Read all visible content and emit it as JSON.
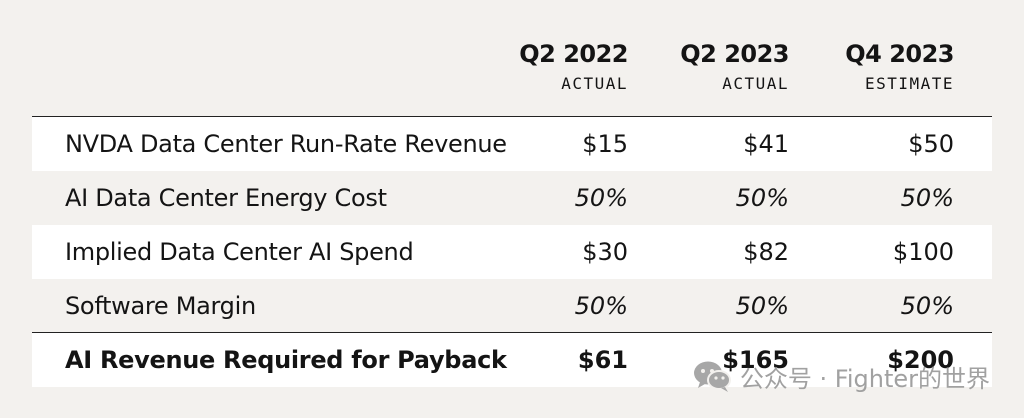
{
  "columns": [
    {
      "period": "Q2 2022",
      "kind": "ACTUAL"
    },
    {
      "period": "Q2 2023",
      "kind": "ACTUAL"
    },
    {
      "period": "Q4 2023",
      "kind": "ESTIMATE"
    }
  ],
  "rows": [
    {
      "label": "NVDA Data Center Run-Rate Revenue",
      "values": [
        "$15",
        "$41",
        "$50"
      ]
    },
    {
      "label": "AI Data Center Energy Cost",
      "values": [
        "50%",
        "50%",
        "50%"
      ]
    },
    {
      "label": "Implied Data Center AI Spend",
      "values": [
        "$30",
        "$82",
        "$100"
      ]
    },
    {
      "label": "Software Margin",
      "values": [
        "50%",
        "50%",
        "50%"
      ]
    },
    {
      "label": "AI Revenue Required for Payback",
      "values": [
        "$61",
        "$165",
        "$200"
      ]
    }
  ],
  "watermark": {
    "text": "公众号 · Fighter的世界",
    "icon": "wechat-icon"
  }
}
